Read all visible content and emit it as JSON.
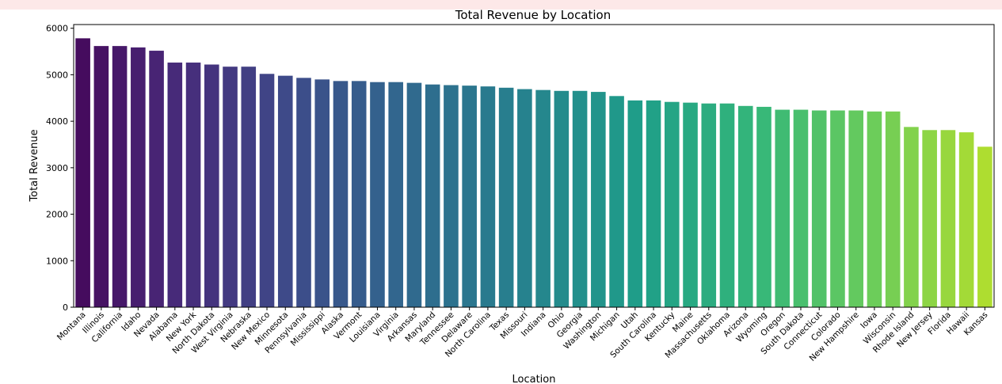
{
  "warning_text": "",
  "chart_data": {
    "type": "bar",
    "title": "Total Revenue by Location",
    "xlabel": "Location",
    "ylabel": "Total Revenue",
    "ylim": [
      0,
      6080
    ],
    "yticks": [
      0,
      1000,
      2000,
      3000,
      4000,
      5000,
      6000
    ],
    "grid": false,
    "palette": "viridis",
    "categories": [
      "Montana",
      "Illinois",
      "California",
      "Idaho",
      "Nevada",
      "Alabama",
      "New York",
      "North Dakota",
      "West Virginia",
      "Nebraska",
      "New Mexico",
      "Minnesota",
      "Pennsylvania",
      "Mississippi",
      "Alaska",
      "Vermont",
      "Louisiana",
      "Virginia",
      "Arkansas",
      "Maryland",
      "Tennessee",
      "Delaware",
      "North Carolina",
      "Texas",
      "Missouri",
      "Indiana",
      "Ohio",
      "Georgia",
      "Washington",
      "Michigan",
      "Utah",
      "South Carolina",
      "Kentucky",
      "Maine",
      "Massachusetts",
      "Oklahoma",
      "Arizona",
      "Wyoming",
      "Oregon",
      "South Dakota",
      "Connecticut",
      "Colorado",
      "New Hampshire",
      "Iowa",
      "Wisconsin",
      "Rhode Island",
      "New Jersey",
      "Florida",
      "Hawaii",
      "Kansas"
    ],
    "values": [
      5784,
      5618,
      5618,
      5588,
      5517,
      5262,
      5262,
      5220,
      5174,
      5174,
      5019,
      4979,
      4933,
      4899,
      4865,
      4865,
      4842,
      4842,
      4826,
      4791,
      4777,
      4766,
      4749,
      4721,
      4691,
      4672,
      4653,
      4653,
      4631,
      4542,
      4448,
      4448,
      4416,
      4400,
      4382,
      4382,
      4329,
      4310,
      4248,
      4248,
      4232,
      4232,
      4232,
      4210,
      4210,
      3877,
      3810,
      3810,
      3762,
      3452
    ]
  }
}
